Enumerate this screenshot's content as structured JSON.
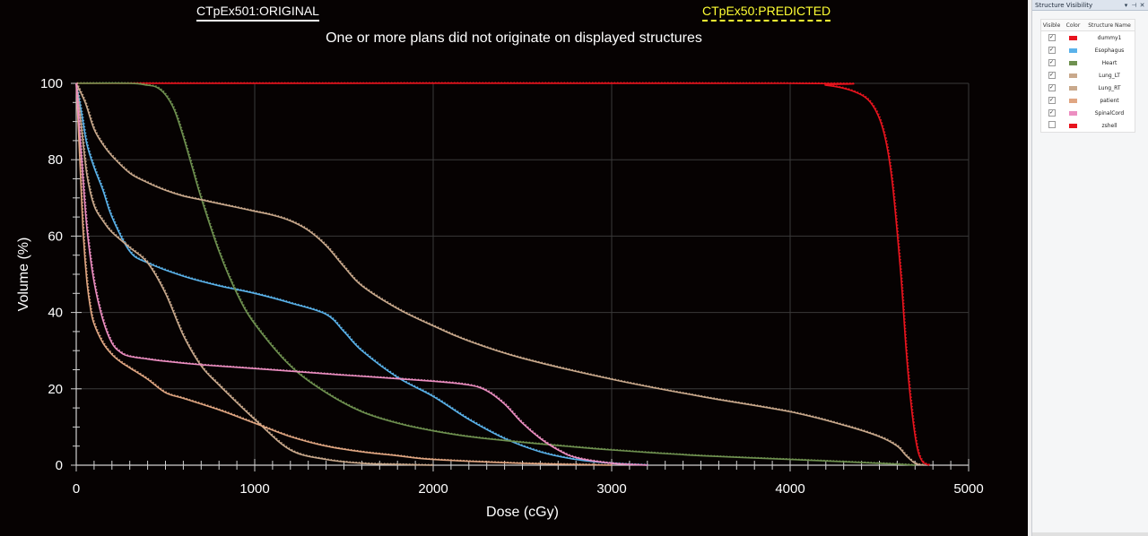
{
  "header": {
    "original_label": "CTpEx501:ORIGINAL",
    "predicted_label": "CTpEx50:PREDICTED",
    "warning": "One or more plans did not originate on displayed structures"
  },
  "panel": {
    "title": "Structure Visibility",
    "col_visible": "Visible",
    "col_color": "Color",
    "col_name": "Structure Name",
    "structures": [
      {
        "name": "dummy1",
        "color": "#e8141e",
        "visible": true
      },
      {
        "name": "Esophagus",
        "color": "#5ab2ea",
        "visible": true
      },
      {
        "name": "Heart",
        "color": "#6f9150",
        "visible": true
      },
      {
        "name": "Lung_LT",
        "color": "#c9a98c",
        "visible": true
      },
      {
        "name": "Lung_RT",
        "color": "#c9a98c",
        "visible": true
      },
      {
        "name": "patient",
        "color": "#e0a682",
        "visible": true
      },
      {
        "name": "SpinalCord",
        "color": "#ec8ec1",
        "visible": true
      },
      {
        "name": "zshell",
        "color": "#e8141e",
        "visible": false
      }
    ]
  },
  "chart_data": {
    "type": "line",
    "title": "",
    "xlabel": "Dose (cGy)",
    "ylabel": "Volume (%)",
    "xlim": [
      0,
      5000
    ],
    "ylim": [
      0,
      100
    ],
    "xticks": [
      0,
      1000,
      2000,
      3000,
      4000,
      5000
    ],
    "yticks": [
      0,
      20,
      40,
      60,
      80,
      100
    ],
    "grid": true,
    "background": "#060202",
    "grid_color": "#3a3a3a",
    "series": [
      {
        "name": "dummy1",
        "color": "#e8141e",
        "x": [
          0,
          4000,
          4200,
          4350,
          4450,
          4520,
          4570,
          4620,
          4650,
          4680,
          4710,
          4740,
          4780
        ],
        "y": [
          100,
          100,
          99.5,
          98,
          95,
          88,
          75,
          50,
          30,
          15,
          5,
          1,
          0
        ]
      },
      {
        "name": "Esophagus",
        "color": "#5ab2ea",
        "x": [
          0,
          30,
          60,
          100,
          150,
          200,
          300,
          400,
          600,
          800,
          1000,
          1200,
          1400,
          1500,
          1600,
          1800,
          2000,
          2200,
          2400,
          2600,
          2800,
          3000,
          3200
        ],
        "y": [
          100,
          92,
          84,
          78,
          72,
          65,
          56,
          53,
          49.5,
          47,
          45,
          42.5,
          39.5,
          35,
          30,
          23,
          18,
          12,
          7,
          3.5,
          1.5,
          0.5,
          0
        ]
      },
      {
        "name": "Heart",
        "color": "#6f9150",
        "x": [
          0,
          300,
          400,
          450,
          500,
          550,
          600,
          650,
          700,
          800,
          900,
          1000,
          1200,
          1400,
          1600,
          1800,
          2000,
          2200,
          2500,
          3000,
          3500,
          4000,
          4500,
          4700
        ],
        "y": [
          100,
          100,
          99.5,
          99,
          97,
          93,
          86,
          78,
          70,
          56,
          45,
          37,
          26,
          19,
          14,
          11,
          9,
          7.5,
          6,
          4,
          2.5,
          1.5,
          0.5,
          0
        ]
      },
      {
        "name": "Lung_LT",
        "color": "#c9a98c",
        "x": [
          0,
          30,
          60,
          100,
          150,
          200,
          300,
          400,
          500,
          600,
          700,
          800,
          1000,
          1200,
          1400,
          1600,
          1800,
          2000
        ],
        "y": [
          100,
          88,
          76,
          68,
          64,
          61,
          57,
          53,
          45,
          34,
          26,
          21,
          12,
          4,
          1.5,
          0.5,
          0.2,
          0
        ]
      },
      {
        "name": "Lung_RT",
        "color": "#c9a98c",
        "x": [
          0,
          50,
          100,
          150,
          200,
          300,
          400,
          500,
          600,
          700,
          800,
          900,
          1000,
          1100,
          1200,
          1300,
          1400,
          1500,
          1600,
          1800,
          2000,
          2200,
          2500,
          3000,
          3500,
          4000,
          4300,
          4500,
          4600,
          4650,
          4700,
          4750
        ],
        "y": [
          100,
          95,
          88,
          84,
          81,
          76.5,
          74,
          72,
          70.5,
          69.5,
          68.5,
          67.5,
          66.5,
          65.5,
          64,
          61.5,
          57.5,
          52,
          47,
          41,
          36.5,
          32.5,
          28,
          22.5,
          18,
          14,
          10.5,
          7.5,
          5,
          2.5,
          0.5,
          0
        ]
      },
      {
        "name": "patient",
        "color": "#e0a682",
        "x": [
          0,
          20,
          40,
          60,
          80,
          100,
          150,
          200,
          250,
          300,
          400,
          500,
          600,
          800,
          1000,
          1200,
          1400,
          1600,
          1800,
          2000,
          2500,
          3000
        ],
        "y": [
          100,
          80,
          60,
          48,
          41,
          37,
          32,
          29,
          27,
          25.5,
          22.5,
          19,
          17.5,
          14.5,
          11,
          7.5,
          5,
          3.5,
          2.5,
          1.5,
          0.5,
          0
        ]
      },
      {
        "name": "SpinalCord",
        "color": "#ec8ec1",
        "x": [
          0,
          30,
          60,
          100,
          150,
          200,
          250,
          300,
          400,
          500,
          700,
          1000,
          1500,
          2000,
          2200,
          2300,
          2400,
          2500,
          2600,
          2700,
          2800,
          3000,
          3200
        ],
        "y": [
          100,
          80,
          62,
          48,
          38,
          32,
          29.5,
          28.5,
          27.8,
          27.2,
          26.3,
          25.3,
          23.6,
          22,
          21,
          19.5,
          16,
          11,
          7,
          4,
          2,
          0.5,
          0
        ]
      }
    ]
  }
}
